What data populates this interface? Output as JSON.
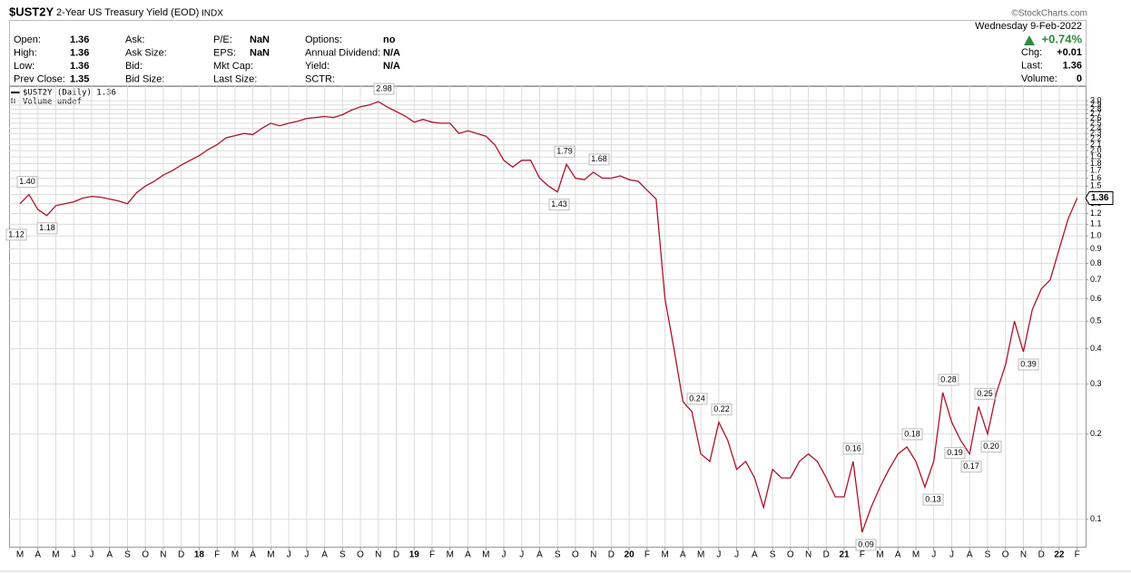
{
  "header": {
    "symbol": "$UST2Y",
    "name": "2-Year US Treasury Yield (EOD)",
    "exchange": "INDX",
    "brand": "©StockCharts.com",
    "date": "Wednesday  9-Feb-2022",
    "change_pct": "+0.74%",
    "quote": [
      [
        {
          "label": "Open:",
          "value": "1.36"
        },
        {
          "label": "High:",
          "value": "1.36"
        },
        {
          "label": "Low:",
          "value": "1.36"
        },
        {
          "label": "Prev Close:",
          "value": "1.35"
        }
      ],
      [
        {
          "label": "Ask:"
        },
        {
          "label": "Ask Size:"
        },
        {
          "label": "Bid:"
        },
        {
          "label": "Bid Size:"
        }
      ],
      [
        {
          "label": "P/E:",
          "value": "NaN"
        },
        {
          "label": "EPS:",
          "value": "NaN"
        },
        {
          "label": "Mkt Cap:"
        },
        {
          "label": "Last Size:"
        }
      ],
      [
        {
          "label": "Options:",
          "value": "no"
        },
        {
          "label": "Annual Dividend:",
          "value": "N/A"
        },
        {
          "label": "Yield:",
          "value": "N/A"
        },
        {
          "label": "SCTR:"
        }
      ]
    ],
    "right": [
      {
        "label": "Chg:",
        "value": "+0.01"
      },
      {
        "label": "Last:",
        "value": "1.36"
      },
      {
        "label": "Volume:",
        "value": "0"
      }
    ]
  },
  "chart_data": {
    "type": "line",
    "log_scale": true,
    "grid": true,
    "volume_label": "Volume undef",
    "categories": [
      "M",
      null,
      "A",
      null,
      "M",
      null,
      "J",
      null,
      "J",
      null,
      "A",
      null,
      "S",
      null,
      "O",
      null,
      "N",
      null,
      "D",
      null,
      "18",
      null,
      "F",
      null,
      "M",
      null,
      "A",
      null,
      "M",
      null,
      "J",
      null,
      "J",
      null,
      "A",
      null,
      "S",
      null,
      "O",
      null,
      "N",
      null,
      "D",
      null,
      "19",
      null,
      "F",
      null,
      "M",
      null,
      "A",
      null,
      "M",
      null,
      "J",
      null,
      "J",
      null,
      "A",
      null,
      "S",
      null,
      "O",
      null,
      "N",
      null,
      "D",
      null,
      "20",
      null,
      "F",
      null,
      "M",
      null,
      "A",
      null,
      "M",
      null,
      "J",
      null,
      "J",
      null,
      "A",
      null,
      "S",
      null,
      "O",
      null,
      "N",
      null,
      "D",
      null,
      "21",
      null,
      "F",
      null,
      "M",
      null,
      "A",
      null,
      "M",
      null,
      "J",
      null,
      "J",
      null,
      "A",
      null,
      "S",
      null,
      "O",
      null,
      "N",
      null,
      "D",
      null,
      "22",
      null,
      "F"
    ],
    "series": [
      {
        "name": "$UST2Y (Daily) 1.36",
        "color": "#b0102c",
        "values": [
          1.3,
          1.4,
          1.24,
          1.18,
          1.28,
          1.3,
          1.32,
          1.36,
          1.38,
          1.37,
          1.35,
          1.33,
          1.3,
          1.42,
          1.5,
          1.56,
          1.64,
          1.7,
          1.78,
          1.85,
          1.92,
          2.02,
          2.1,
          2.22,
          2.26,
          2.3,
          2.28,
          2.4,
          2.5,
          2.45,
          2.5,
          2.54,
          2.6,
          2.62,
          2.64,
          2.62,
          2.68,
          2.78,
          2.86,
          2.9,
          2.98,
          2.85,
          2.75,
          2.65,
          2.52,
          2.58,
          2.52,
          2.5,
          2.5,
          2.3,
          2.35,
          2.3,
          2.25,
          2.1,
          1.85,
          1.75,
          1.85,
          1.85,
          1.6,
          1.5,
          1.43,
          1.79,
          1.6,
          1.58,
          1.68,
          1.6,
          1.6,
          1.63,
          1.58,
          1.56,
          1.45,
          1.35,
          0.6,
          0.4,
          0.26,
          0.24,
          0.17,
          0.16,
          0.22,
          0.19,
          0.15,
          0.16,
          0.14,
          0.11,
          0.15,
          0.14,
          0.14,
          0.16,
          0.17,
          0.16,
          0.14,
          0.12,
          0.12,
          0.16,
          0.09,
          0.11,
          0.13,
          0.15,
          0.17,
          0.18,
          0.16,
          0.13,
          0.16,
          0.28,
          0.22,
          0.19,
          0.17,
          0.25,
          0.2,
          0.28,
          0.35,
          0.5,
          0.39,
          0.55,
          0.65,
          0.7,
          0.9,
          1.15,
          1.36
        ]
      }
    ],
    "annotations": [
      {
        "value": 1.4,
        "label": "1.40"
      },
      {
        "value": 1.12,
        "label": "1.12"
      },
      {
        "value": 1.18,
        "label": "1.18"
      },
      {
        "value": 2.98,
        "label": "2.98"
      },
      {
        "value": 1.79,
        "label": "1.79"
      },
      {
        "value": 1.43,
        "label": "1.43"
      },
      {
        "value": 1.68,
        "label": "1.68"
      },
      {
        "value": 0.24,
        "label": "0.24"
      },
      {
        "value": 0.22,
        "label": "0.22"
      },
      {
        "value": 0.16,
        "label": "0.16"
      },
      {
        "value": 0.09,
        "label": "0.09"
      },
      {
        "value": 0.18,
        "label": "0.18"
      },
      {
        "value": 0.13,
        "label": "0.13"
      },
      {
        "value": 0.28,
        "label": "0.28"
      },
      {
        "value": 0.19,
        "label": "0.19"
      },
      {
        "value": 0.17,
        "label": "0.17"
      },
      {
        "value": 0.25,
        "label": "0.25"
      },
      {
        "value": 0.2,
        "label": "0.20"
      },
      {
        "value": 0.39,
        "label": "0.39"
      }
    ],
    "ylim": [
      0.08,
      3.38
    ],
    "yticks": [
      0.1,
      0.2,
      0.3,
      0.4,
      0.5,
      0.6,
      0.7,
      0.8,
      0.9,
      {
        "value": 1,
        "label": "1.0"
      },
      1.1,
      1.2,
      1.3,
      1.4,
      1.5,
      1.6,
      1.7,
      1.8,
      1.9,
      {
        "value": 2,
        "label": "2.0"
      },
      2.1,
      2.2,
      2.3,
      2.4,
      2.5,
      2.6,
      2.7,
      2.8,
      2.9,
      {
        "value": 3,
        "label": "3.0"
      }
    ]
  }
}
